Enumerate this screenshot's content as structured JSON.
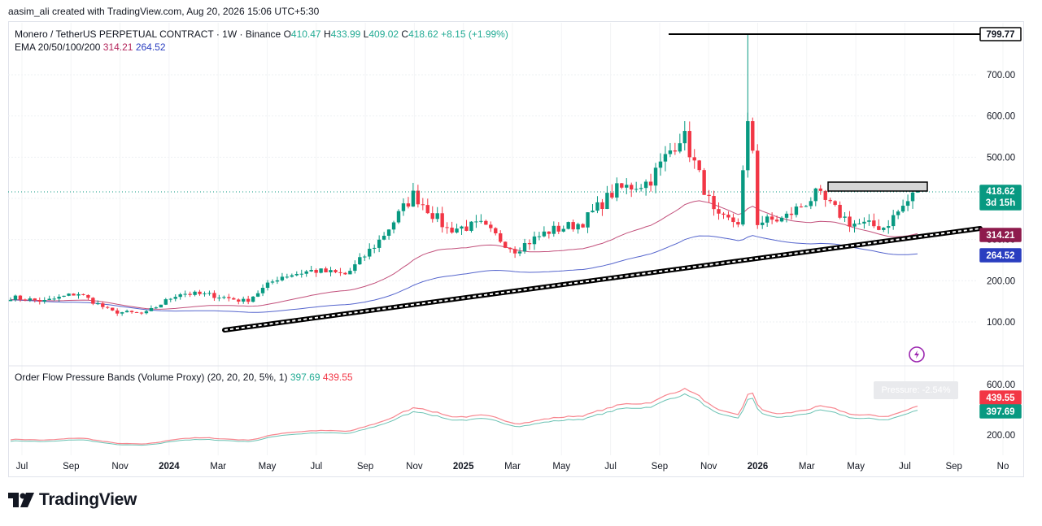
{
  "header": {
    "attribution": "aasim_ali created with TradingView.com, Aug 20, 2026 15:06 UTC+5:30"
  },
  "legend_main": {
    "symbol": "Monero / TetherUS PERPETUAL CONTRACT · 1W · Binance",
    "o_label": "O",
    "o_value": "410.47",
    "h_label": "H",
    "h_value": "433.99",
    "l_label": "L",
    "l_value": "409.02",
    "c_label": "C",
    "c_value": "418.62",
    "change": "+8.15 (+1.99%)",
    "ema_name": "EMA 20/50/100/200",
    "ema_val1": "314.21",
    "ema_val2": "264.52"
  },
  "legend_osc": {
    "name": "Order Flow Pressure Bands (Volume Proxy) (20, 20, 20, 5%, 1)",
    "val1": "397.69",
    "val2": "439.55",
    "pressure_label": "Pressure: -2.54%"
  },
  "brand": {
    "name": "TradingView"
  },
  "colors": {
    "up": "#089981",
    "down": "#f23645",
    "ema_short": "#b3245a",
    "ema_long": "#2a3ec0",
    "price_tag": "#089981",
    "trendline": "#000000",
    "osc_upper": "#f23645",
    "osc_lower": "#089981"
  },
  "chart_data": {
    "type": "candlestick",
    "interval": "1W",
    "price_axis": {
      "ticks": [
        "100.00",
        "200.00",
        "300.00",
        "400.00",
        "500.00",
        "600.00",
        "700.00"
      ],
      "ylim": [
        100,
        799.77
      ]
    },
    "x_ticks": [
      "Jul",
      "Sep",
      "Nov",
      "2024",
      "Mar",
      "May",
      "Jul",
      "Sep",
      "Nov",
      "2025",
      "Mar",
      "May",
      "Jul",
      "Sep",
      "Nov",
      "2026",
      "Mar",
      "May",
      "Jul",
      "Sep",
      "No"
    ],
    "price_tags": [
      {
        "label": "799.77",
        "style": "black-outline",
        "value": 799.77
      },
      {
        "label": "418.62",
        "sublabel": "3d 15h",
        "style": "green",
        "value": 418.62
      },
      {
        "label": "314.21",
        "style": "maroon",
        "value": 314.21
      },
      {
        "label": "264.52",
        "style": "blue",
        "value": 264.52
      }
    ],
    "horizontal_line": {
      "value": 799.77,
      "from": "Dec 2025"
    },
    "resistance_box": {
      "low": 424,
      "high": 445,
      "from": "Apr 2026",
      "to": "Aug 2026"
    },
    "trendline": {
      "from": {
        "date": "Mar 2024",
        "value": 80
      },
      "to": {
        "date": "Oct 2026",
        "value": 325
      }
    },
    "weekly_close_approx": [
      {
        "period": "Jun 2023",
        "close": 160
      },
      {
        "period": "Sep 2023",
        "close": 150
      },
      {
        "period": "Dec 2023",
        "close": 170
      },
      {
        "period": "Feb 2024",
        "close": 125
      },
      {
        "period": "Apr 2024",
        "close": 120
      },
      {
        "period": "Jun 2024",
        "close": 170
      },
      {
        "period": "Aug 2024",
        "close": 165
      },
      {
        "period": "Oct 2024",
        "close": 150
      },
      {
        "period": "Nov 2024",
        "close": 210
      },
      {
        "period": "Jan 2025",
        "close": 225
      },
      {
        "period": "Mar 2025",
        "close": 215
      },
      {
        "period": "Apr 2025",
        "close": 300
      },
      {
        "period": "May 2025",
        "close": 410
      },
      {
        "period": "Jun 2025",
        "close": 325
      },
      {
        "period": "Jul 2025",
        "close": 335
      },
      {
        "period": "Aug 2025",
        "close": 275
      },
      {
        "period": "Sep 2025",
        "close": 320
      },
      {
        "period": "Oct 2025",
        "close": 340
      },
      {
        "period": "Nov 2025",
        "close": 420
      },
      {
        "period": "Dec 2025",
        "close": 440
      },
      {
        "period": "Jan 2026",
        "close": 560
      },
      {
        "period": "Feb 2026",
        "close": 350
      },
      {
        "period": "Mar 2026",
        "close": 340
      },
      {
        "period": "Apr 2026",
        "close": 350
      },
      {
        "period": "May 2026",
        "close": 410
      },
      {
        "period": "Jun 2026",
        "close": 340
      },
      {
        "period": "Jul 2026",
        "close": 330
      },
      {
        "period": "Aug 2026",
        "close": 418.62
      }
    ],
    "ema_series": [
      {
        "name": "EMA 20",
        "last": 314.21
      },
      {
        "name": "EMA 50",
        "last": 264.52
      }
    ],
    "oscillator": {
      "ticks": [
        "200.00",
        "600.00"
      ],
      "tags": [
        {
          "label": "439.55",
          "style": "red"
        },
        {
          "label": "397.69",
          "style": "green"
        }
      ]
    }
  }
}
